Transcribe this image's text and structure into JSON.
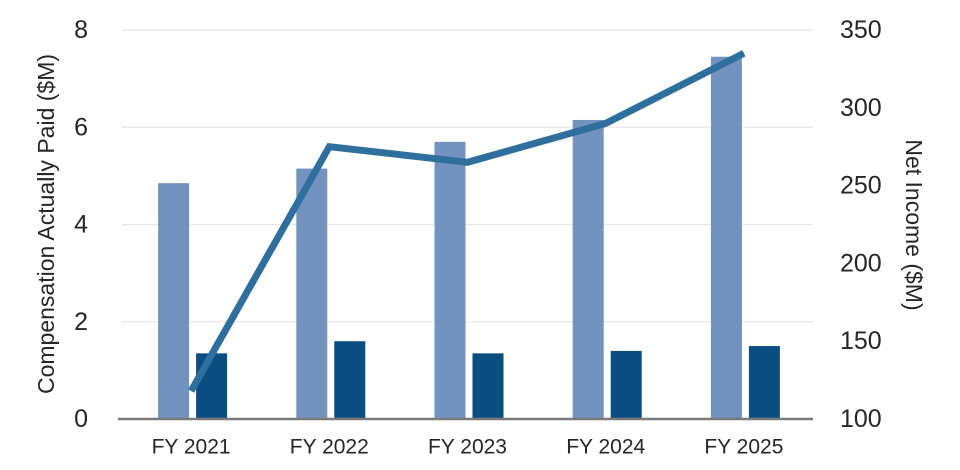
{
  "chart_data": {
    "type": "combo",
    "categories": [
      "FY 2021",
      "FY 2022",
      "FY 2023",
      "FY 2024",
      "FY 2025"
    ],
    "series": [
      {
        "name": "light-blue-bars",
        "type": "bar",
        "axis": "left",
        "color": "#7393BE",
        "values": [
          4.85,
          5.15,
          5.7,
          6.15,
          7.45
        ]
      },
      {
        "name": "dark-blue-bars",
        "type": "bar",
        "axis": "left",
        "color": "#094D81",
        "values": [
          1.35,
          1.6,
          1.35,
          1.4,
          1.5
        ]
      },
      {
        "name": "net-income-line",
        "type": "line",
        "axis": "right",
        "color": "#2F6F9E",
        "values": [
          118,
          275,
          265,
          290,
          335
        ]
      }
    ],
    "left_axis": {
      "label": "Compensation Actually Paid ($M)",
      "min": 0,
      "max": 8,
      "ticks": [
        0,
        2,
        4,
        6,
        8
      ]
    },
    "right_axis": {
      "label": "Net Income ($M)",
      "min": 100,
      "max": 350,
      "ticks": [
        100,
        150,
        200,
        250,
        300,
        350
      ]
    },
    "title": "",
    "legend": "none",
    "grid": true,
    "colors": {
      "grid": "#E7E7E7",
      "baseline": "#7A7A7A",
      "text": "#262626"
    }
  }
}
